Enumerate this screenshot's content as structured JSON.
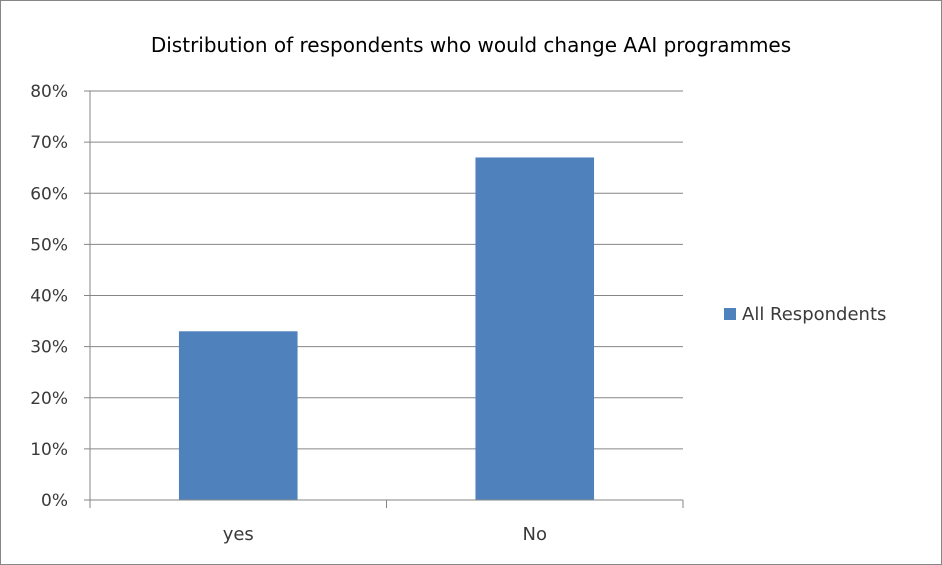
{
  "chart_data": {
    "type": "bar",
    "title": "Distribution of respondents who would change AAI programmes",
    "categories": [
      "yes",
      "No"
    ],
    "series": [
      {
        "name": "All Respondents",
        "values": [
          33,
          67
        ],
        "color": "#4f81bd"
      }
    ],
    "ylim": [
      0,
      80
    ],
    "yticks": [
      0,
      10,
      20,
      30,
      40,
      50,
      60,
      70,
      80
    ],
    "ytick_labels": [
      "0%",
      "10%",
      "20%",
      "30%",
      "40%",
      "50%",
      "60%",
      "70%",
      "80%"
    ],
    "xlabel": "",
    "ylabel": "",
    "grid": true,
    "legend_position": "right"
  }
}
